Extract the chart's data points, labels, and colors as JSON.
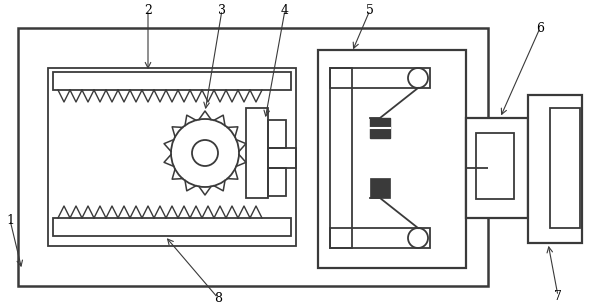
{
  "bg_color": "#ffffff",
  "lc": "#3a3a3a",
  "lw": 1.3,
  "fig_w": 5.99,
  "fig_h": 3.08,
  "dpi": 100
}
